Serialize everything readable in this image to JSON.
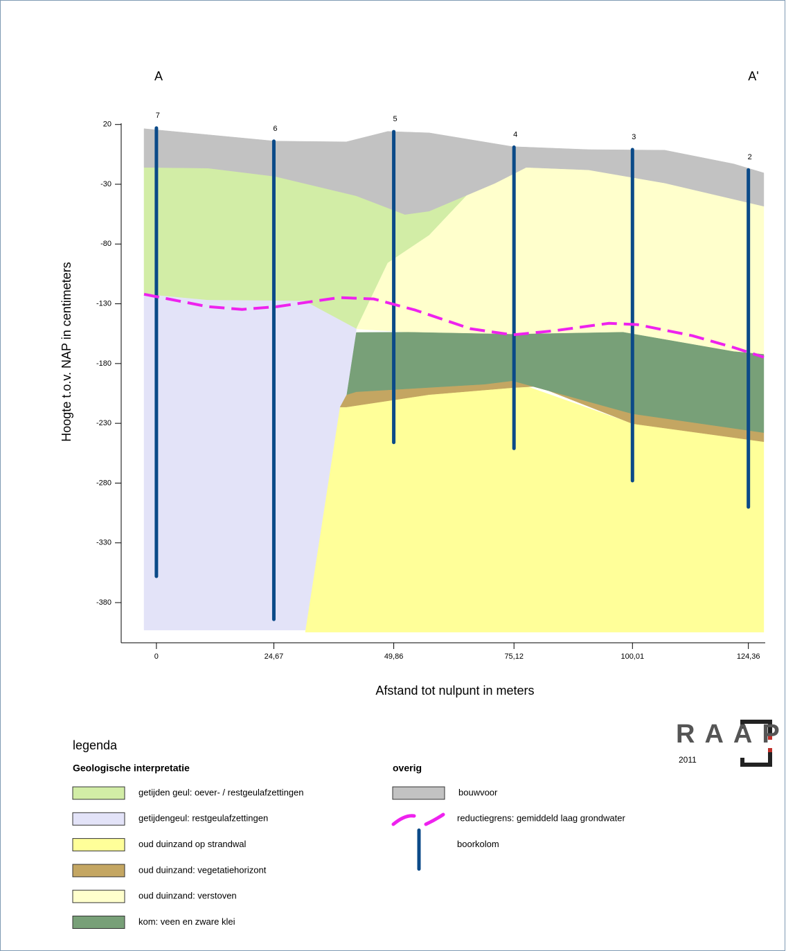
{
  "chart_data": {
    "type": "area",
    "section_labels": [
      "A",
      "A'"
    ],
    "xlabel": "Afstand tot nulpunt in meters",
    "ylabel": "Hoogte t.o.v. NAP in centimeters",
    "xlim": [
      -7.4,
      127.9
    ],
    "ylim": [
      -413.6,
      21
    ],
    "xticks": [
      {
        "value": 0,
        "label": "0"
      },
      {
        "value": 24.67,
        "label": "24,67"
      },
      {
        "value": 49.86,
        "label": "49,86"
      },
      {
        "value": 75.12,
        "label": "75,12"
      },
      {
        "value": 100.01,
        "label": "100,01"
      },
      {
        "value": 124.36,
        "label": "124,36"
      }
    ],
    "yticks": [
      20,
      -30,
      -80,
      -130,
      -180,
      -230,
      -280,
      -330,
      -380
    ],
    "legend_title": "legenda",
    "groups": [
      {
        "title": "Geologische interpretatie",
        "layers": [
          {
            "name": "getijden geul: oever- / restgeulafzettingen",
            "color": "#d2eda6",
            "x": [
              -2.6,
              10.8,
              24.9,
              42,
              52.2,
              57.3,
              66.5,
              57.3,
              48.6,
              42,
              31.1,
              10.8,
              -2.6
            ],
            "y": [
              -15.9,
              -16.5,
              -23.4,
              -39.7,
              -55.3,
              -52.5,
              -33.9,
              -72.7,
              -95.9,
              -151,
              -127.7,
              -127,
              -122
            ]
          },
          {
            "name": "getijdengeul: restgeulafzettingen",
            "color": "#e3e3f8",
            "x": [
              -2.6,
              10.8,
              31.1,
              42,
              39.9,
              31.3,
              -2.6
            ],
            "y": [
              -122,
              -127,
              -127.7,
              -151,
              -218,
              -403,
              -403
            ]
          },
          {
            "name": "oud duinzand op strandwal",
            "color": "#ffff99",
            "x": [
              38.6,
              39.9,
              57.3,
              68.9,
              77.7,
              100,
              127.6,
              127.6,
              31.3
            ],
            "y": [
              -216.4,
              -216.4,
              -206,
              -199,
              -199,
              -230.3,
              -245.4,
              -404.7,
              -404.7
            ]
          },
          {
            "name": "oud duinzand: vegetatiehorizont",
            "color": "#c4a662",
            "x": [
              40,
              42,
              68.9,
              74.8,
              100,
              127.6,
              127.6,
              100,
              80,
              74.8,
              57.3,
              39.9,
              38.6
            ],
            "y": [
              -206,
              -203.6,
              -197.3,
              -194.4,
              -222,
              -237.8,
              -245.4,
              -230.3,
              -199,
              -200.2,
              -206,
              -216.4,
              -216.4
            ]
          },
          {
            "name": "oud duinzand: verstoven",
            "color": "#ffffcc",
            "x": [
              66.5,
              71.1,
              77.7,
              90.8,
              106.8,
              127.6,
              127.6,
              121.3,
              98,
              74.8,
              52.9,
              42,
              48.6,
              57.3
            ],
            "y": [
              -33.9,
              -29.2,
              -15.9,
              -18,
              -29,
              -48.4,
              -172.3,
              -170,
              -153.8,
              -155.5,
              -153.8,
              -151,
              -95.9,
              -72.7
            ]
          },
          {
            "name": "kom: veen en zware klei",
            "color": "#78a078",
            "x": [
              42,
              52.9,
              74.8,
              98,
              121.3,
              127.6,
              127.6,
              100,
              74.8,
              68.9,
              42,
              40
            ],
            "y": [
              -154,
              -153.8,
              -155.5,
              -153.8,
              -170,
              -172.3,
              -237.8,
              -222,
              -194.4,
              -197.3,
              -203.6,
              -206
            ]
          }
        ]
      },
      {
        "title": "overig",
        "layers": [
          {
            "name": "bouwvoor",
            "color": "#c2c2c2",
            "x": [
              -2.6,
              24.9,
              39.9,
              48.6,
              57.3,
              74.8,
              90.8,
              106.8,
              121.3,
              127.6,
              127.6,
              106.8,
              90.8,
              77.7,
              71.1,
              57.3,
              52.2,
              42,
              24.9,
              10.8,
              -2.6
            ],
            "y": [
              16.5,
              6.1,
              5.5,
              14.2,
              13,
              1.5,
              -1,
              -1.5,
              -13,
              -20.5,
              -48.4,
              -29,
              -18,
              -15.9,
              -29.2,
              -52.5,
              -55.3,
              -39.7,
              -23.4,
              -16.5,
              -15.9
            ]
          }
        ]
      }
    ],
    "line": {
      "name": "reductiegrens: gemiddeld laag grondwater",
      "color": "#ee22ee",
      "x": [
        -2.6,
        10.8,
        18,
        25.3,
        38.4,
        45.7,
        54.4,
        66,
        74.8,
        83.5,
        95.1,
        101,
        112.6,
        121.3,
        127.6
      ],
      "y": [
        -122,
        -132.4,
        -134.7,
        -132.4,
        -124.8,
        -126,
        -135.3,
        -150.9,
        -156,
        -152.6,
        -146.3,
        -147.4,
        -156.7,
        -166.6,
        -174.7
      ]
    },
    "boreholes": {
      "name": "boorkolom",
      "color": "#0b4a88",
      "labels": [
        "7",
        "6",
        "5",
        "4",
        "3",
        "2"
      ],
      "x": [
        0,
        24.67,
        49.86,
        75.12,
        100.01,
        124.36
      ],
      "top": [
        17,
        6,
        14,
        1,
        -1,
        -18
      ],
      "bottom": [
        -358,
        -394,
        -246,
        -251,
        -278,
        -300
      ]
    },
    "logo": {
      "text": "RAAP",
      "year": "2011"
    }
  }
}
